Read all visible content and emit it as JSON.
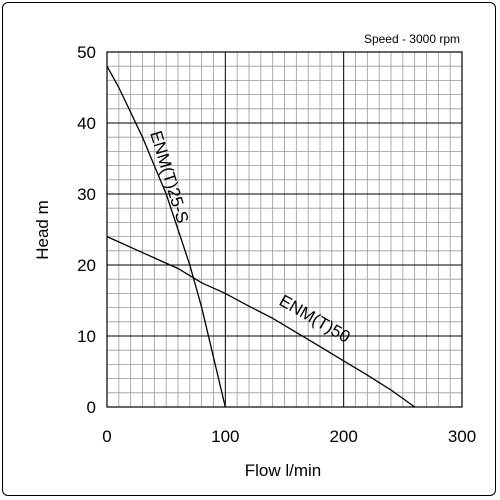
{
  "chart_data": {
    "type": "line",
    "title": "",
    "annotation": "Speed - 3000 rpm",
    "xlabel": "Flow l/min",
    "ylabel": "Head m",
    "xlim": [
      0,
      300
    ],
    "ylim": [
      0,
      50
    ],
    "x_ticks": [
      0,
      100,
      200,
      300
    ],
    "y_ticks": [
      0,
      10,
      20,
      30,
      40,
      50
    ],
    "grid": true,
    "legend": "none",
    "series": [
      {
        "name": "ENM(T)25-S",
        "points": [
          [
            0,
            48
          ],
          [
            10,
            45
          ],
          [
            20,
            41.5
          ],
          [
            30,
            38
          ],
          [
            40,
            34
          ],
          [
            50,
            30
          ],
          [
            60,
            25
          ],
          [
            70,
            20
          ],
          [
            80,
            14
          ],
          [
            90,
            7
          ],
          [
            100,
            0
          ]
        ]
      },
      {
        "name": "ENM(T)50",
        "points": [
          [
            0,
            24
          ],
          [
            20,
            22.5
          ],
          [
            40,
            21
          ],
          [
            60,
            19.5
          ],
          [
            80,
            17.5
          ],
          [
            100,
            16
          ],
          [
            120,
            14.2
          ],
          [
            140,
            12.5
          ],
          [
            160,
            10.5
          ],
          [
            180,
            8.5
          ],
          [
            200,
            6.5
          ],
          [
            220,
            4.5
          ],
          [
            240,
            2.4
          ],
          [
            260,
            0
          ]
        ]
      }
    ]
  },
  "colors": {
    "line": "#000000",
    "grid_minor": "#9a9a9a",
    "grid_major": "#000000"
  }
}
